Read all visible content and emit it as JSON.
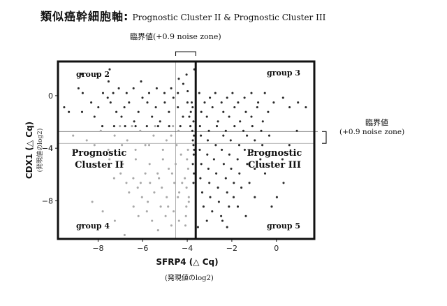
{
  "title": {
    "main": "類似癌幹細胞軸:",
    "sub": "Prognostic Cluster II & Prognostic Cluster III"
  },
  "threshold_top_label": "臨界値(+0.9 noise zone)",
  "threshold_right_label_line1": "臨界値",
  "threshold_right_label_line2": "(+0.9 noise zone)",
  "x_units_label": "(発現値のlog2)",
  "chart_data": {
    "type": "scatter",
    "xlabel": "SFRP4 (△ Cq)",
    "ylabel": "CDX1 (△ Cq)",
    "y_units_label": "(発現値のlog2)",
    "xlim": [
      -9.8,
      1.7
    ],
    "ylim": [
      -10.9,
      2.6
    ],
    "x_ticks": [
      -8,
      -6,
      -4,
      -2,
      0
    ],
    "y_ticks": [
      0,
      -4,
      -8
    ],
    "x_tick_labels": [
      "−8",
      "−6",
      "−4",
      "−2",
      "0"
    ],
    "y_tick_labels": [
      "0",
      "−4",
      "−4",
      "−8"
    ],
    "cluster_divider_x": -3.62,
    "cluster_divider_y": -2.73,
    "noise_zone_x": [
      -4.52,
      -3.62
    ],
    "noise_zone_y": [
      -3.63,
      -2.73
    ],
    "corner_labels": [
      "group 2",
      "group 3",
      "group 4",
      "group 5"
    ],
    "cluster_labels": [
      {
        "line1": "Prognostic",
        "line2": "Cluster II"
      },
      {
        "line1": "Prognostic",
        "line2": "Cluster III"
      }
    ],
    "colors": {
      "dark": "#2b2b2b",
      "light": "#a8a8a8",
      "border": "#111111"
    },
    "series": [
      {
        "shade": "dark",
        "points": [
          [
            -8.88,
            0.56
          ],
          [
            -8.69,
            0.2
          ],
          [
            -8.31,
            -0.52
          ],
          [
            -8.72,
            -1.24
          ],
          [
            -8.16,
            -1.6
          ],
          [
            -7.99,
            -0.88
          ],
          [
            -7.78,
            0.2
          ],
          [
            -7.57,
            -0.16
          ],
          [
            -7.44,
            -0.52
          ],
          [
            -7.18,
            -1.24
          ],
          [
            -6.95,
            -1.6
          ],
          [
            -6.82,
            -0.88
          ],
          [
            -6.61,
            -0.52
          ],
          [
            -6.38,
            -1.96
          ],
          [
            -6.19,
            -1.24
          ],
          [
            -6.01,
            -0.16
          ],
          [
            -5.79,
            -0.52
          ],
          [
            -5.58,
            -1.6
          ],
          [
            -5.41,
            -0.88
          ],
          [
            -5.22,
            -1.96
          ],
          [
            -5.01,
            -0.52
          ],
          [
            -4.82,
            -1.24
          ],
          [
            -4.62,
            -0.16
          ],
          [
            -4.42,
            -0.88
          ],
          [
            -4.19,
            -1.6
          ],
          [
            -3.99,
            -0.52
          ],
          [
            -3.84,
            -1.24
          ],
          [
            -3.72,
            -1.96
          ],
          [
            -7.53,
            1.08
          ],
          [
            -7.32,
            0.2
          ],
          [
            -7.07,
            0.56
          ],
          [
            -6.72,
            0.2
          ],
          [
            -6.41,
            0.56
          ],
          [
            -6.07,
            1.08
          ],
          [
            -5.71,
            0.2
          ],
          [
            -5.37,
            0.56
          ],
          [
            -5.02,
            0.2
          ],
          [
            -4.72,
            0.56
          ],
          [
            -4.42,
            0.2
          ],
          [
            -4.18,
            0.9
          ],
          [
            -3.98,
            0.34
          ],
          [
            -7.81,
            -2.32
          ],
          [
            -7.28,
            -2.32
          ],
          [
            -6.79,
            -2.32
          ],
          [
            -6.32,
            -2.32
          ],
          [
            -5.81,
            -2.32
          ],
          [
            -5.31,
            -2.32
          ],
          [
            -4.81,
            -2.32
          ],
          [
            -4.31,
            -2.32
          ],
          [
            -3.86,
            -2.32
          ],
          [
            -9.52,
            -0.88
          ],
          [
            -9.31,
            -1.24
          ],
          [
            -7.48,
            2.0
          ],
          [
            -8.03,
            1.64
          ],
          [
            -8.74,
            1.64
          ],
          [
            -3.46,
            0.2
          ],
          [
            -3.22,
            -0.52
          ],
          [
            -2.98,
            -0.16
          ],
          [
            -2.74,
            0.2
          ],
          [
            -2.46,
            -0.52
          ],
          [
            -2.21,
            -0.16
          ],
          [
            -1.97,
            0.2
          ],
          [
            -1.72,
            -0.52
          ],
          [
            -1.43,
            -0.16
          ],
          [
            -1.12,
            0.2
          ],
          [
            -0.82,
            -0.52
          ],
          [
            -0.52,
            0.2
          ],
          [
            -3.37,
            -1.24
          ],
          [
            -3.12,
            -1.6
          ],
          [
            -2.87,
            -0.88
          ],
          [
            -2.62,
            -1.96
          ],
          [
            -2.38,
            -1.24
          ],
          [
            -2.12,
            -1.6
          ],
          [
            -1.88,
            -0.88
          ],
          [
            -1.63,
            -1.96
          ],
          [
            -1.37,
            -1.24
          ],
          [
            -1.12,
            -1.6
          ],
          [
            -0.86,
            -0.88
          ],
          [
            -0.61,
            -1.96
          ],
          [
            -0.37,
            -1.24
          ],
          [
            -0.12,
            -0.52
          ],
          [
            0.3,
            -0.16
          ],
          [
            0.59,
            -0.88
          ],
          [
            0.97,
            -0.52
          ],
          [
            1.32,
            -0.88
          ],
          [
            -3.43,
            -2.32
          ],
          [
            -3.03,
            -2.68
          ],
          [
            -2.67,
            -2.32
          ],
          [
            -2.27,
            -2.68
          ],
          [
            -1.88,
            -2.32
          ],
          [
            -1.48,
            -2.68
          ],
          [
            -1.08,
            -2.32
          ],
          [
            -0.68,
            -2.68
          ],
          [
            -3.39,
            -3.04
          ],
          [
            -3.08,
            -3.4
          ],
          [
            -2.72,
            -3.76
          ],
          [
            -2.38,
            -3.04
          ],
          [
            -2.05,
            -3.4
          ],
          [
            -1.67,
            -3.76
          ],
          [
            -1.32,
            -3.04
          ],
          [
            -0.97,
            -3.4
          ],
          [
            -0.63,
            -3.76
          ],
          [
            -0.32,
            -3.04
          ],
          [
            -3.44,
            -4.12
          ],
          [
            -3.1,
            -4.48
          ],
          [
            -2.8,
            -4.84
          ],
          [
            -2.45,
            -4.12
          ],
          [
            -2.11,
            -4.48
          ],
          [
            -1.74,
            -4.84
          ],
          [
            -1.42,
            -4.12
          ],
          [
            -1.09,
            -4.48
          ],
          [
            -0.72,
            -4.84
          ],
          [
            -3.37,
            -5.2
          ],
          [
            -3.05,
            -5.56
          ],
          [
            -2.7,
            -5.92
          ],
          [
            -2.36,
            -5.2
          ],
          [
            -2.03,
            -5.56
          ],
          [
            -1.66,
            -5.92
          ],
          [
            -1.31,
            -5.2
          ],
          [
            -0.97,
            -5.56
          ],
          [
            -3.41,
            -6.28
          ],
          [
            -3.01,
            -6.64
          ],
          [
            -2.62,
            -7.0
          ],
          [
            -2.27,
            -6.28
          ],
          [
            -1.91,
            -6.64
          ],
          [
            -1.57,
            -7.0
          ],
          [
            -1.21,
            -6.64
          ],
          [
            -3.33,
            -7.36
          ],
          [
            -2.97,
            -7.72
          ],
          [
            -2.58,
            -8.08
          ],
          [
            -2.21,
            -7.36
          ],
          [
            -1.92,
            -7.72
          ],
          [
            -3.27,
            -8.44
          ],
          [
            -2.88,
            -8.8
          ],
          [
            -2.48,
            -9.16
          ],
          [
            -2.13,
            -8.44
          ],
          [
            -3.12,
            -9.52
          ],
          [
            -2.21,
            -10.0
          ],
          [
            -1.37,
            -9.16
          ],
          [
            0.02,
            -7.72
          ],
          [
            0.32,
            -6.64
          ],
          [
            -0.21,
            -8.44
          ],
          [
            0.58,
            -3.76
          ],
          [
            0.92,
            -2.68
          ],
          [
            0.27,
            -4.84
          ],
          [
            -0.51,
            -5.92
          ],
          [
            -0.97,
            -7.72
          ],
          [
            -1.73,
            -8.44
          ],
          [
            -2.42,
            -9.52
          ],
          [
            -3.52,
            -10.0
          ],
          [
            -4.03,
            1.6
          ],
          [
            -3.68,
            2.0
          ],
          [
            -4.38,
            1.28
          ],
          [
            -3.8,
            -0.52
          ],
          [
            -3.76,
            -0.88
          ],
          [
            -3.91,
            -1.6
          ],
          [
            -3.77,
            -2.68
          ],
          [
            -3.7,
            -3.04
          ],
          [
            -3.75,
            -3.4
          ],
          [
            -3.72,
            -3.76
          ],
          [
            -3.69,
            -4.12
          ],
          [
            -3.71,
            -4.48
          ],
          [
            -3.75,
            -5.2
          ],
          [
            -3.7,
            -5.92
          ],
          [
            -3.72,
            -6.64
          ]
        ]
      },
      {
        "shade": "light",
        "points": [
          [
            -9.12,
            -3.04
          ],
          [
            -8.51,
            -3.4
          ],
          [
            -7.88,
            -2.68
          ],
          [
            -7.26,
            -3.04
          ],
          [
            -6.69,
            -3.4
          ],
          [
            -6.11,
            -2.68
          ],
          [
            -5.51,
            -3.04
          ],
          [
            -4.93,
            -3.4
          ],
          [
            -4.39,
            -2.68
          ],
          [
            -8.16,
            -3.76
          ],
          [
            -7.54,
            -4.12
          ],
          [
            -6.93,
            -3.76
          ],
          [
            -6.32,
            -4.12
          ],
          [
            -5.71,
            -3.76
          ],
          [
            -5.09,
            -4.12
          ],
          [
            -4.48,
            -3.76
          ],
          [
            -3.97,
            -4.12
          ],
          [
            -7.49,
            -4.84
          ],
          [
            -6.89,
            -5.2
          ],
          [
            -6.31,
            -4.84
          ],
          [
            -5.69,
            -5.2
          ],
          [
            -5.09,
            -4.84
          ],
          [
            -4.52,
            -5.2
          ],
          [
            -4.01,
            -4.84
          ],
          [
            -6.99,
            -5.92
          ],
          [
            -6.42,
            -6.28
          ],
          [
            -5.88,
            -5.92
          ],
          [
            -5.27,
            -6.28
          ],
          [
            -4.68,
            -5.92
          ],
          [
            -4.11,
            -6.28
          ],
          [
            -6.73,
            -6.64
          ],
          [
            -6.22,
            -7.0
          ],
          [
            -5.67,
            -6.64
          ],
          [
            -5.14,
            -7.0
          ],
          [
            -4.58,
            -6.64
          ],
          [
            -4.03,
            -7.0
          ],
          [
            -6.61,
            -7.36
          ],
          [
            -6.03,
            -7.72
          ],
          [
            -5.48,
            -7.36
          ],
          [
            -4.92,
            -7.72
          ],
          [
            -4.36,
            -7.36
          ],
          [
            -3.93,
            -7.72
          ],
          [
            -6.41,
            -8.44
          ],
          [
            -5.81,
            -8.8
          ],
          [
            -5.19,
            -8.44
          ],
          [
            -4.61,
            -8.8
          ],
          [
            -4.04,
            -8.44
          ],
          [
            -6.19,
            -9.16
          ],
          [
            -5.58,
            -9.52
          ],
          [
            -4.97,
            -9.16
          ],
          [
            -4.37,
            -9.52
          ],
          [
            -7.79,
            -8.8
          ],
          [
            -7.25,
            -9.52
          ],
          [
            -6.81,
            -10.6
          ],
          [
            -8.72,
            -9.88
          ],
          [
            -8.26,
            -8.08
          ],
          [
            -7.28,
            -6.28
          ],
          [
            -4.71,
            -9.88
          ],
          [
            -4.08,
            -9.88
          ],
          [
            -5.31,
            -10.24
          ],
          [
            -7.02,
            -2.32
          ],
          [
            -6.48,
            -2.32
          ],
          [
            -5.44,
            -2.32
          ],
          [
            -4.64,
            -2.32
          ],
          [
            -5.88,
            -3.76
          ],
          [
            -4.72,
            -3.04
          ],
          [
            -4.28,
            -4.48
          ],
          [
            -4.83,
            -5.56
          ],
          [
            -5.33,
            -5.92
          ],
          [
            -4.23,
            -6.64
          ],
          [
            -4.42,
            -7.72
          ],
          [
            -5.77,
            -8.08
          ],
          [
            -4.86,
            -8.44
          ],
          [
            -6.09,
            -6.64
          ],
          [
            -3.96,
            -5.56
          ],
          [
            -3.93,
            -8.08
          ],
          [
            -4.06,
            -9.16
          ]
        ]
      }
    ]
  }
}
